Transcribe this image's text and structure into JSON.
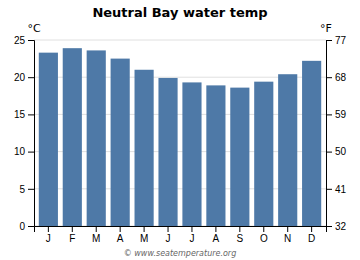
{
  "chart_data": {
    "type": "bar",
    "title": "Neutral Bay water temp",
    "categories": [
      "J",
      "F",
      "M",
      "A",
      "M",
      "J",
      "J",
      "A",
      "S",
      "O",
      "N",
      "D"
    ],
    "values": [
      23.3,
      23.9,
      23.6,
      22.5,
      21.0,
      19.9,
      19.3,
      18.9,
      18.6,
      19.4,
      20.4,
      22.2
    ],
    "ylim": [
      0,
      25
    ],
    "yticks": [
      0,
      5,
      10,
      15,
      20,
      25
    ],
    "ylabel": "°C",
    "y2lim": [
      32,
      77
    ],
    "y2ticks": [
      32,
      41,
      50,
      59,
      68,
      77
    ],
    "y2label": "°F",
    "grid": true,
    "annotations": [
      "© www.seatemperature.org"
    ]
  }
}
